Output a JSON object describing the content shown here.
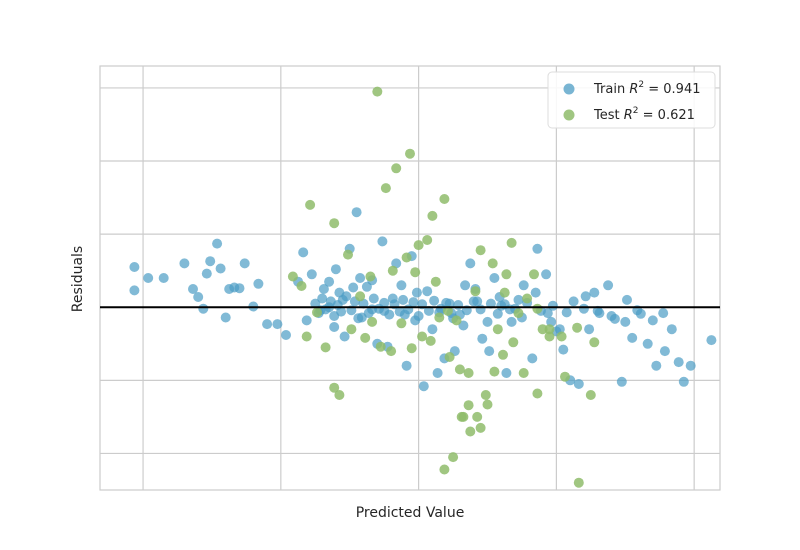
{
  "chart_data": {
    "type": "scatter",
    "title": "",
    "xlabel": "Predicted Value",
    "ylabel": "Residuals",
    "xlim": [
      -25,
      335
    ],
    "ylim": [
      -250,
      330
    ],
    "x_gridlines": [
      0,
      80,
      160,
      240,
      320
    ],
    "y_gridlines": [
      -200,
      -100,
      0,
      100,
      200,
      300
    ],
    "tick_labels_shown": false,
    "grid": true,
    "legend_position": "top-right",
    "zero_line": {
      "y": 0,
      "color": "#000000"
    },
    "series": [
      {
        "name": "Train R² = 0.941",
        "legend_prefix": "Train ",
        "legend_value": " = 0.941",
        "color": "#4c9cc4",
        "points": [
          [
            -5,
            55
          ],
          [
            -5,
            23
          ],
          [
            3,
            40
          ],
          [
            12,
            40
          ],
          [
            24,
            60
          ],
          [
            29,
            25
          ],
          [
            32,
            14
          ],
          [
            35,
            -2
          ],
          [
            37,
            46
          ],
          [
            39,
            63
          ],
          [
            43,
            87
          ],
          [
            45,
            53
          ],
          [
            48,
            -14
          ],
          [
            50,
            25
          ],
          [
            53,
            27
          ],
          [
            56,
            26
          ],
          [
            59,
            60
          ],
          [
            64,
            1
          ],
          [
            67,
            32
          ],
          [
            72,
            -23
          ],
          [
            78,
            -23
          ],
          [
            83,
            -38
          ],
          [
            90,
            35
          ],
          [
            93,
            75
          ],
          [
            95,
            -18
          ],
          [
            98,
            45
          ],
          [
            103,
            -4
          ],
          [
            105,
            25
          ],
          [
            108,
            0
          ],
          [
            111,
            -27
          ],
          [
            114,
            20
          ],
          [
            117,
            -40
          ],
          [
            120,
            80
          ],
          [
            124,
            130
          ],
          [
            127,
            -14
          ],
          [
            130,
            28
          ],
          [
            133,
            -3
          ],
          [
            136,
            -50
          ],
          [
            139,
            90
          ],
          [
            142,
            -54
          ],
          [
            147,
            60
          ],
          [
            150,
            30
          ],
          [
            153,
            -80
          ],
          [
            156,
            70
          ],
          [
            159,
            20
          ],
          [
            163,
            -108
          ],
          [
            168,
            -30
          ],
          [
            171,
            -90
          ],
          [
            175,
            -70
          ],
          [
            178,
            5
          ],
          [
            181,
            -60
          ],
          [
            184,
            -10
          ],
          [
            187,
            30
          ],
          [
            190,
            60
          ],
          [
            194,
            8
          ],
          [
            197,
            -43
          ],
          [
            201,
            -60
          ],
          [
            204,
            40
          ],
          [
            208,
            2
          ],
          [
            211,
            -90
          ],
          [
            214,
            -20
          ],
          [
            218,
            10
          ],
          [
            221,
            30
          ],
          [
            226,
            -70
          ],
          [
            229,
            80
          ],
          [
            234,
            45
          ],
          [
            237,
            -20
          ],
          [
            240,
            -33
          ],
          [
            244,
            -58
          ],
          [
            248,
            -100
          ],
          [
            253,
            -105
          ],
          [
            256,
            -2
          ],
          [
            259,
            -30
          ],
          [
            262,
            20
          ],
          [
            265,
            -8
          ],
          [
            270,
            30
          ],
          [
            274,
            -16
          ],
          [
            278,
            -102
          ],
          [
            281,
            10
          ],
          [
            284,
            -42
          ],
          [
            289,
            -9
          ],
          [
            293,
            -50
          ],
          [
            298,
            -80
          ],
          [
            303,
            -60
          ],
          [
            307,
            -30
          ],
          [
            311,
            -75
          ],
          [
            314,
            -102
          ],
          [
            318,
            -80
          ],
          [
            330,
            -45
          ],
          [
            108,
            35
          ],
          [
            112,
            52
          ],
          [
            116,
            10
          ],
          [
            122,
            27
          ],
          [
            126,
            40
          ],
          [
            133,
            37
          ],
          [
            140,
            -5
          ],
          [
            145,
            12
          ],
          [
            152,
            -10
          ],
          [
            158,
            -18
          ],
          [
            165,
            22
          ],
          [
            172,
            -7
          ],
          [
            180,
            -15
          ],
          [
            186,
            -25
          ],
          [
            193,
            25
          ],
          [
            200,
            -20
          ],
          [
            207,
            14
          ],
          [
            213,
            -3
          ],
          [
            220,
            -14
          ],
          [
            228,
            20
          ],
          [
            235,
            -8
          ],
          [
            242,
            -30
          ],
          [
            250,
            8
          ],
          [
            257,
            15
          ],
          [
            264,
            -5
          ],
          [
            272,
            -12
          ],
          [
            280,
            -20
          ],
          [
            287,
            -4
          ],
          [
            296,
            -18
          ],
          [
            302,
            -8
          ],
          [
            100,
            5
          ],
          [
            102,
            -8
          ],
          [
            104,
            12
          ],
          [
            106,
            -3
          ],
          [
            109,
            8
          ],
          [
            111,
            -12
          ],
          [
            113,
            3
          ],
          [
            115,
            -6
          ],
          [
            118,
            15
          ],
          [
            121,
            -4
          ],
          [
            123,
            8
          ],
          [
            125,
            -15
          ],
          [
            128,
            5
          ],
          [
            131,
            -8
          ],
          [
            134,
            12
          ],
          [
            137,
            -2
          ],
          [
            140,
            6
          ],
          [
            143,
            -10
          ],
          [
            146,
            4
          ],
          [
            149,
            -6
          ],
          [
            151,
            10
          ],
          [
            154,
            -3
          ],
          [
            157,
            7
          ],
          [
            160,
            -12
          ],
          [
            162,
            4
          ],
          [
            166,
            -5
          ],
          [
            169,
            9
          ],
          [
            173,
            -2
          ],
          [
            176,
            6
          ],
          [
            179,
            -8
          ],
          [
            183,
            3
          ],
          [
            188,
            -4
          ],
          [
            192,
            8
          ],
          [
            196,
            -3
          ],
          [
            202,
            5
          ],
          [
            206,
            -9
          ],
          [
            210,
            4
          ],
          [
            216,
            -2
          ],
          [
            223,
            6
          ],
          [
            231,
            -5
          ],
          [
            238,
            2
          ],
          [
            246,
            -7
          ]
        ]
      },
      {
        "name": "Test R² = 0.621",
        "legend_prefix": "Test ",
        "legend_value": " = 0.621",
        "color": "#8fbc6b",
        "points": [
          [
            97,
            140
          ],
          [
            111,
            115
          ],
          [
            136,
            295
          ],
          [
            141,
            163
          ],
          [
            147,
            190
          ],
          [
            155,
            210
          ],
          [
            160,
            85
          ],
          [
            168,
            125
          ],
          [
            175,
            -222
          ],
          [
            180,
            -205
          ],
          [
            186,
            -150
          ],
          [
            190,
            -170
          ],
          [
            196,
            -165
          ],
          [
            200,
            -133
          ],
          [
            211,
            45
          ],
          [
            229,
            -2
          ],
          [
            245,
            -95
          ],
          [
            253,
            -240
          ],
          [
            260,
            -120
          ],
          [
            87,
            42
          ],
          [
            92,
            29
          ],
          [
            101,
            -7
          ],
          [
            106,
            -55
          ],
          [
            111,
            -110
          ],
          [
            114,
            -120
          ],
          [
            121,
            -30
          ],
          [
            129,
            -42
          ],
          [
            133,
            -20
          ],
          [
            138,
            -54
          ],
          [
            144,
            -60
          ],
          [
            150,
            -22
          ],
          [
            156,
            -56
          ],
          [
            162,
            -40
          ],
          [
            167,
            -46
          ],
          [
            172,
            -14
          ],
          [
            178,
            -68
          ],
          [
            184,
            -85
          ],
          [
            189,
            -134
          ],
          [
            194,
            -150
          ],
          [
            199,
            -120
          ],
          [
            204,
            -88
          ],
          [
            209,
            -65
          ],
          [
            215,
            -48
          ],
          [
            221,
            -90
          ],
          [
            229,
            -118
          ],
          [
            236,
            -30
          ],
          [
            243,
            -40
          ],
          [
            252,
            -28
          ],
          [
            262,
            -48
          ],
          [
            95,
            -40
          ],
          [
            119,
            72
          ],
          [
            126,
            15
          ],
          [
            132,
            42
          ],
          [
            145,
            50
          ],
          [
            153,
            68
          ],
          [
            158,
            48
          ],
          [
            165,
            92
          ],
          [
            170,
            35
          ],
          [
            175,
            148
          ],
          [
            177,
            -5
          ],
          [
            182,
            -18
          ],
          [
            185,
            -150
          ],
          [
            189,
            -90
          ],
          [
            193,
            22
          ],
          [
            196,
            78
          ],
          [
            203,
            60
          ],
          [
            206,
            -30
          ],
          [
            210,
            20
          ],
          [
            214,
            88
          ],
          [
            218,
            -8
          ],
          [
            223,
            12
          ],
          [
            227,
            45
          ],
          [
            232,
            -30
          ],
          [
            236,
            -40
          ]
        ]
      }
    ]
  }
}
